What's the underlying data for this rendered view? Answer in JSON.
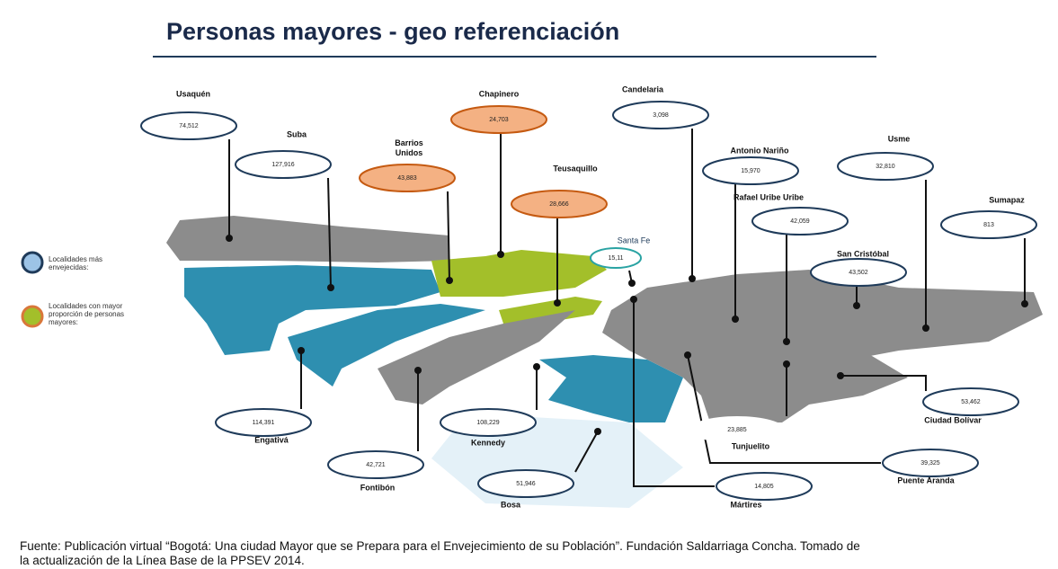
{
  "title": "Personas mayores - geo referenciación",
  "legend": [
    {
      "label": "Localidades más envejecidas:"
    },
    {
      "label": "Localidades con mayor proporción de personas mayores:"
    }
  ],
  "localities": [
    {
      "name": "Usaquén",
      "value": "74,512"
    },
    {
      "name": "Suba",
      "value": "127,916"
    },
    {
      "name": "Barrios Unidos",
      "value": "43,883"
    },
    {
      "name": "Chapinero",
      "value": "24,703"
    },
    {
      "name": "Teusaquillo",
      "value": "28,666"
    },
    {
      "name": "Candelaria",
      "value": "3,098"
    },
    {
      "name": "Santa Fe",
      "value": "15,11"
    },
    {
      "name": "Antonio Nariño",
      "value": "15,970"
    },
    {
      "name": "Rafael Uribe Uribe",
      "value": "42,059"
    },
    {
      "name": "Usme",
      "value": "32,810"
    },
    {
      "name": "Sumapaz",
      "value": "813"
    },
    {
      "name": "San Cristóbal",
      "value": "43,502"
    },
    {
      "name": "Ciudad Bolívar",
      "value": "53,462"
    },
    {
      "name": "Puente Aranda",
      "value": "39,325"
    },
    {
      "name": "Tunjuelito",
      "value": "23,885"
    },
    {
      "name": "Mártires",
      "value": "14,805"
    },
    {
      "name": "Bosa",
      "value": "51,946"
    },
    {
      "name": "Kennedy",
      "value": "108,229"
    },
    {
      "name": "Fontibón",
      "value": "42,721"
    },
    {
      "name": "Engativá",
      "value": "114,391"
    }
  ],
  "source": [
    "Fuente: Publicación virtual “Bogotá: Una ciudad Mayor que se Prepara para el Envejecimiento de su Población”. Fundación Saldarriaga Concha. Tomado de",
    "la actualización de la Línea Base de la PPSEV 2014."
  ]
}
